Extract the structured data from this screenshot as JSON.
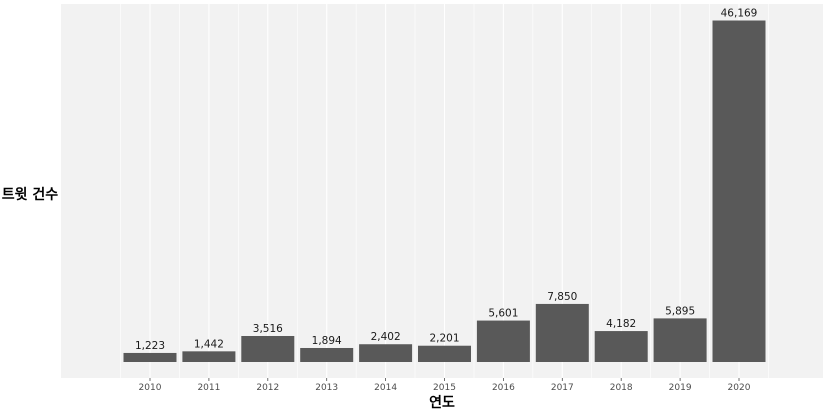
{
  "chart_data": {
    "type": "bar",
    "title": "",
    "xlabel": "연도",
    "ylabel": "트윗 건수",
    "categories": [
      "2010",
      "2011",
      "2012",
      "2013",
      "2014",
      "2015",
      "2016",
      "2017",
      "2018",
      "2019",
      "2020"
    ],
    "values": [
      1223,
      1442,
      3516,
      1894,
      2402,
      2201,
      5601,
      7850,
      4182,
      5895,
      46169
    ],
    "value_labels": [
      "1,223",
      "1,442",
      "3,516",
      "1,894",
      "2,402",
      "2,201",
      "5,601",
      "7,850",
      "4,182",
      "5,895",
      "46,169"
    ],
    "ylim": [
      0,
      48400
    ],
    "grid": true,
    "legend": "none",
    "colors": {
      "bar": "#595959",
      "panel_background": "#f2f2f2",
      "grid": "#ffffff"
    }
  }
}
